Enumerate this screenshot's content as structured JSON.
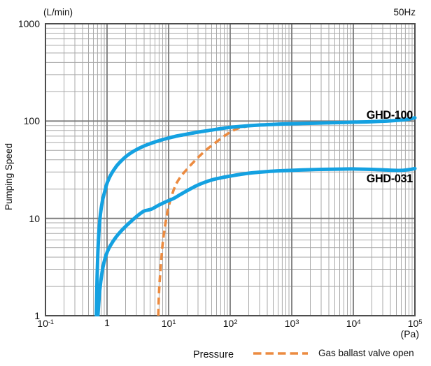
{
  "labels": {
    "y_unit": "(L/min)",
    "frequency": "50Hz",
    "y_axis": "Pumping Speed",
    "x_axis": "Pressure",
    "x_unit": "(Pa)"
  },
  "legend": {
    "label": "Gas ballast valve open",
    "color": "#EC8B40",
    "dash_pattern": "11.5 6"
  },
  "colors": {
    "curve_blue": "#14A1E1",
    "curve_orange": "#EC8B40",
    "grid_minor": "#A9A9A9",
    "grid_major": "#7A7A7A",
    "plot_border": "#4D4D4D",
    "text": "#111111",
    "background": "#FFFFFF"
  },
  "axes": {
    "x_ticks": [
      {
        "value": 0.1,
        "m": "10",
        "sup": "-1"
      },
      {
        "value": 1,
        "m": "1",
        "sup": ""
      },
      {
        "value": 10,
        "m": "10",
        "sup": "1"
      },
      {
        "value": 100,
        "m": "10",
        "sup": "2"
      },
      {
        "value": 1000,
        "m": "10",
        "sup": "3"
      },
      {
        "value": 10000,
        "m": "10",
        "sup": "4"
      },
      {
        "value": 100000,
        "m": "10",
        "sup": "5"
      }
    ],
    "y_ticks": [
      {
        "value": 1000,
        "label": "1000"
      },
      {
        "value": 100,
        "label": "100"
      },
      {
        "value": 10,
        "label": "10"
      },
      {
        "value": 1,
        "label": "1"
      }
    ]
  },
  "chart_data": {
    "type": "line",
    "title": "",
    "xlabel": "Pressure (Pa)",
    "ylabel": "Pumping Speed (L/min)",
    "x_scale": "log",
    "y_scale": "log",
    "xlim": [
      0.1,
      100000
    ],
    "ylim": [
      1,
      1000
    ],
    "grid": true,
    "annotation": "50Hz",
    "legend_position": "bottom-right",
    "series": [
      {
        "name": "GHD-100",
        "color": "#14A1E1",
        "style": "solid",
        "points": [
          [
            0.67,
            1
          ],
          [
            0.69,
            2.5
          ],
          [
            0.71,
            4.5
          ],
          [
            0.74,
            7.5
          ],
          [
            0.78,
            11
          ],
          [
            0.84,
            15
          ],
          [
            0.92,
            19
          ],
          [
            1.0,
            23
          ],
          [
            1.15,
            28
          ],
          [
            1.4,
            34
          ],
          [
            1.7,
            39
          ],
          [
            2.1,
            44
          ],
          [
            2.7,
            49
          ],
          [
            3.5,
            53.5
          ],
          [
            4.6,
            57.5
          ],
          [
            6,
            61
          ],
          [
            8,
            64.5
          ],
          [
            10,
            67
          ],
          [
            14,
            70.5
          ],
          [
            20,
            73.5
          ],
          [
            30,
            77
          ],
          [
            45,
            80
          ],
          [
            65,
            83
          ],
          [
            90,
            85.5
          ],
          [
            130,
            87.5
          ],
          [
            200,
            89.5
          ],
          [
            300,
            91
          ],
          [
            500,
            92.5
          ],
          [
            800,
            93.5
          ],
          [
            1500,
            94.5
          ],
          [
            3000,
            95.5
          ],
          [
            6000,
            96.5
          ],
          [
            10000,
            97.5
          ],
          [
            20000,
            98.5
          ],
          [
            40000,
            100.5
          ],
          [
            70000,
            103.5
          ],
          [
            100000,
            108
          ]
        ]
      },
      {
        "name": "GHD-031",
        "color": "#14A1E1",
        "style": "solid",
        "points": [
          [
            0.71,
            1
          ],
          [
            0.76,
            1.8
          ],
          [
            0.83,
            2.8
          ],
          [
            0.92,
            3.8
          ],
          [
            1.05,
            4.8
          ],
          [
            1.25,
            5.8
          ],
          [
            1.5,
            6.8
          ],
          [
            1.9,
            8
          ],
          [
            2.4,
            9.2
          ],
          [
            3.1,
            10.6
          ],
          [
            4,
            11.9
          ],
          [
            5.2,
            12.4
          ],
          [
            6.8,
            13.6
          ],
          [
            9,
            14.8
          ],
          [
            12,
            16
          ],
          [
            16,
            17.8
          ],
          [
            21,
            19.6
          ],
          [
            28,
            21.6
          ],
          [
            38,
            23.4
          ],
          [
            52,
            25
          ],
          [
            72,
            26.2
          ],
          [
            100,
            27.2
          ],
          [
            150,
            28.4
          ],
          [
            230,
            29.4
          ],
          [
            400,
            30.3
          ],
          [
            700,
            30.9
          ],
          [
            1500,
            31.5
          ],
          [
            3000,
            31.9
          ],
          [
            6000,
            32.1
          ],
          [
            10000,
            32.2
          ],
          [
            20000,
            31.9
          ],
          [
            35000,
            31.4
          ],
          [
            55000,
            31.1
          ],
          [
            75000,
            31.5
          ],
          [
            100000,
            32.5
          ]
        ]
      },
      {
        "name": "Gas ballast valve open",
        "color": "#EC8B40",
        "style": "dashed",
        "points": [
          [
            6.8,
            1
          ],
          [
            7.0,
            1.8
          ],
          [
            7.4,
            3
          ],
          [
            8,
            5.5
          ],
          [
            8.8,
            8.5
          ],
          [
            9.8,
            12.5
          ],
          [
            11.2,
            17
          ],
          [
            13,
            22
          ],
          [
            15.5,
            26.5
          ],
          [
            19,
            31
          ],
          [
            24,
            36.5
          ],
          [
            31,
            43
          ],
          [
            40,
            50
          ],
          [
            52,
            57
          ],
          [
            68,
            65
          ],
          [
            88,
            73
          ],
          [
            112,
            80
          ],
          [
            145,
            85.5
          ],
          [
            185,
            88
          ]
        ]
      }
    ]
  }
}
